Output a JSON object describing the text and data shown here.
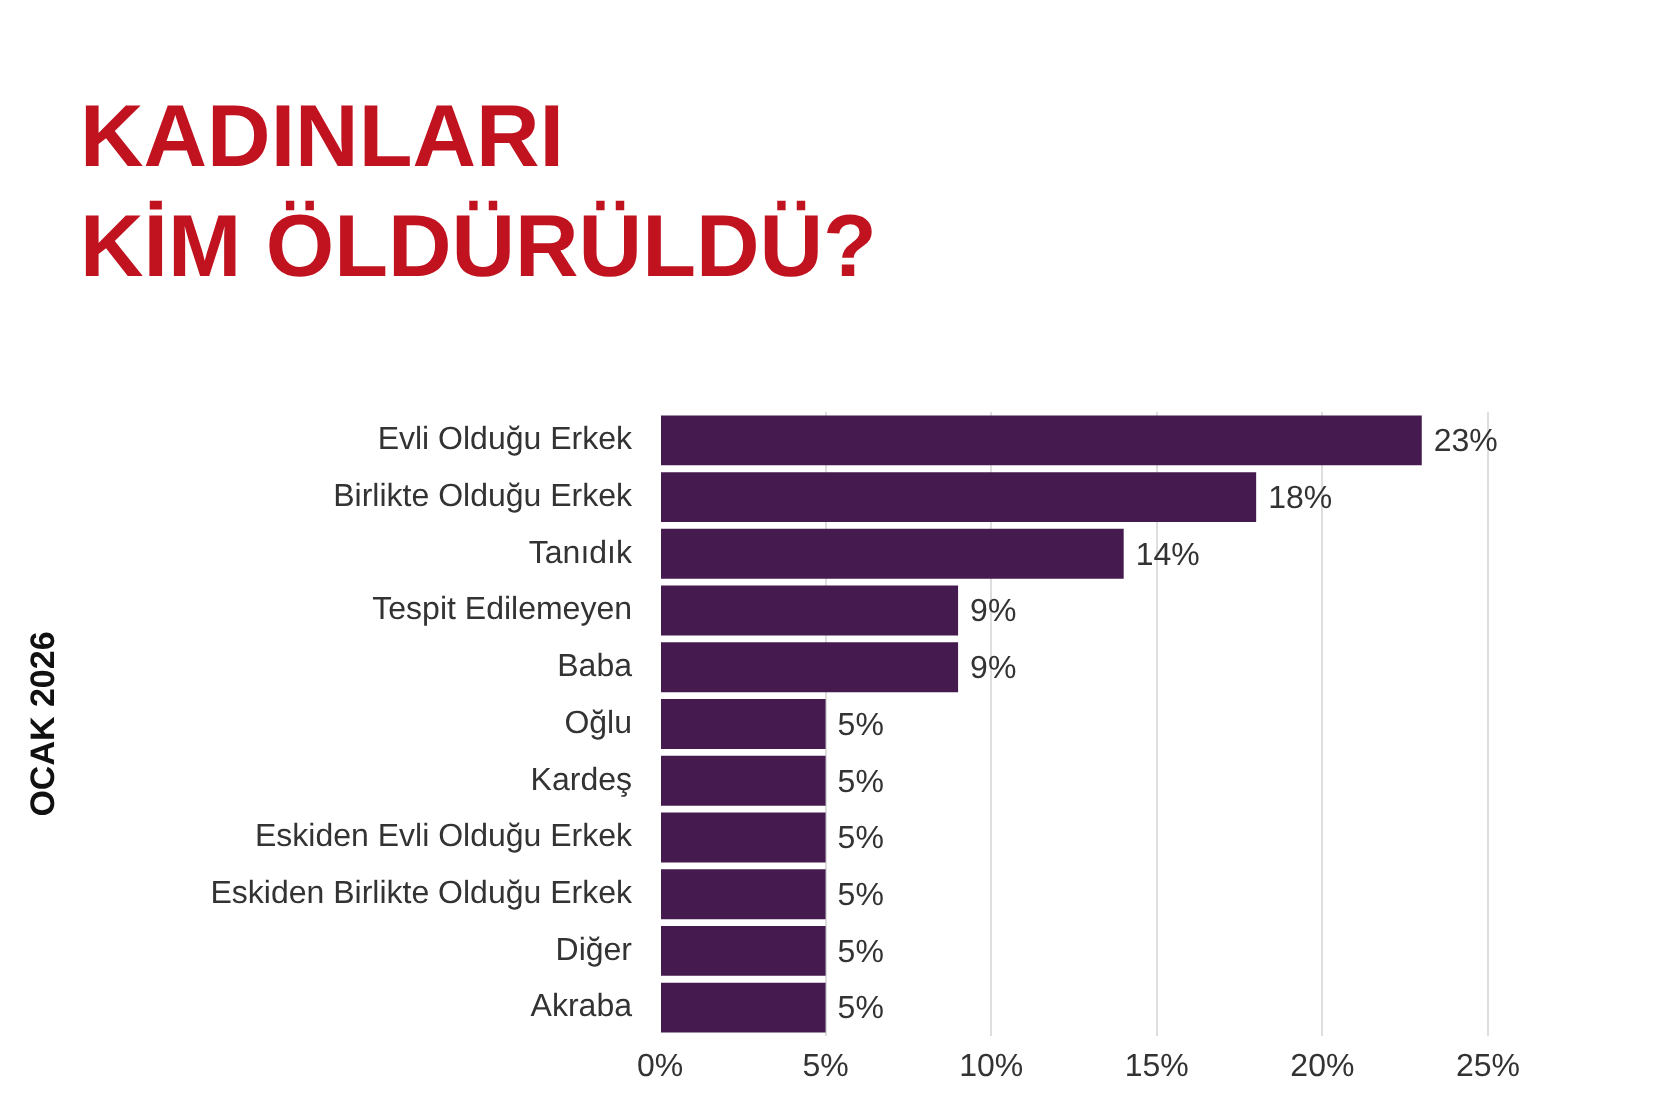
{
  "chart_data": {
    "type": "bar",
    "orientation": "horizontal",
    "title": "KADINLARI KİM ÖLDÜRÜLDÜ?",
    "ylabel": "OCAK 2026",
    "categories": [
      "Evli Olduğu Erkek",
      "Birlikte Olduğu Erkek",
      "Tanıdık",
      "Tespit Edilemeyen",
      "Baba",
      "Oğlu",
      "Kardeş",
      "Eskiden Evli Olduğu Erkek",
      "Eskiden Birlikte Olduğu Erkek",
      "Diğer",
      "Akraba"
    ],
    "values": [
      23,
      18,
      14,
      9,
      9,
      5,
      5,
      5,
      5,
      5,
      5
    ],
    "color": "#451a4e",
    "value_labels": [
      "23%",
      "18%",
      "14%",
      "9%",
      "9%",
      "5%",
      "5%",
      "5%",
      "5%",
      "5%",
      "5%"
    ],
    "xlim": [
      0,
      25
    ],
    "xticks": [
      {
        "value": 0,
        "label": "0%"
      },
      {
        "value": 5,
        "label": "5%"
      },
      {
        "value": 10,
        "label": "10%"
      },
      {
        "value": 15,
        "label": "15%"
      },
      {
        "value": 20,
        "label": "20%"
      },
      {
        "value": 25,
        "label": "25%"
      }
    ],
    "grid": "x"
  }
}
